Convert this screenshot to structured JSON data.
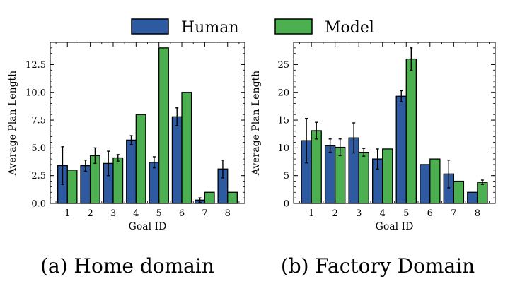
{
  "legend": {
    "entries": [
      {
        "name": "Human",
        "color": "#2d5aa0"
      },
      {
        "name": "Model",
        "color": "#4caf50"
      }
    ]
  },
  "chart_data": [
    {
      "type": "bar",
      "caption": "(a) Home domain",
      "xlabel": "Goal ID",
      "ylabel": "Average Plan Length",
      "categories": [
        "1",
        "2",
        "3",
        "4",
        "5",
        "6",
        "7",
        "8"
      ],
      "ylim": [
        0,
        14.5
      ],
      "yticks": [
        0.0,
        2.5,
        5.0,
        7.5,
        10.0,
        12.5
      ],
      "ytick_labels": [
        "0.0",
        "2.5",
        "5.0",
        "7.5",
        "10.0",
        "12.5"
      ],
      "minor_step": 0.5,
      "series": [
        {
          "name": "Human",
          "color": "#2d5aa0",
          "values": [
            3.4,
            3.4,
            3.6,
            5.7,
            3.7,
            7.8,
            0.3,
            3.1
          ],
          "errors": [
            1.7,
            0.5,
            1.1,
            0.4,
            0.5,
            0.8,
            0.2,
            0.8
          ]
        },
        {
          "name": "Model",
          "color": "#4caf50",
          "values": [
            3.0,
            4.3,
            4.1,
            8.0,
            14.0,
            10.0,
            1.0,
            1.0
          ],
          "errors": [
            0,
            0.7,
            0.3,
            0,
            0,
            0,
            0,
            0
          ]
        }
      ]
    },
    {
      "type": "bar",
      "caption": "(b) Factory Domain",
      "xlabel": "Goal ID",
      "ylabel": "Average Plan Length",
      "categories": [
        "1",
        "2",
        "3",
        "4",
        "5",
        "6",
        "7",
        "8"
      ],
      "ylim": [
        0,
        29
      ],
      "yticks": [
        0,
        5,
        10,
        15,
        20,
        25
      ],
      "ytick_labels": [
        "0",
        "5",
        "10",
        "15",
        "20",
        "25"
      ],
      "minor_step": 1,
      "series": [
        {
          "name": "Human",
          "color": "#2d5aa0",
          "values": [
            11.3,
            10.4,
            11.8,
            8.0,
            19.3,
            7.0,
            5.3,
            2.0
          ],
          "errors": [
            4.0,
            1.2,
            2.7,
            1.8,
            1.0,
            0,
            2.5,
            0
          ]
        },
        {
          "name": "Model",
          "color": "#4caf50",
          "values": [
            13.1,
            10.1,
            9.2,
            9.8,
            26.0,
            8.0,
            4.0,
            3.8
          ],
          "errors": [
            1.5,
            1.5,
            0.7,
            0,
            2.0,
            0,
            0,
            0.4
          ]
        }
      ]
    }
  ]
}
